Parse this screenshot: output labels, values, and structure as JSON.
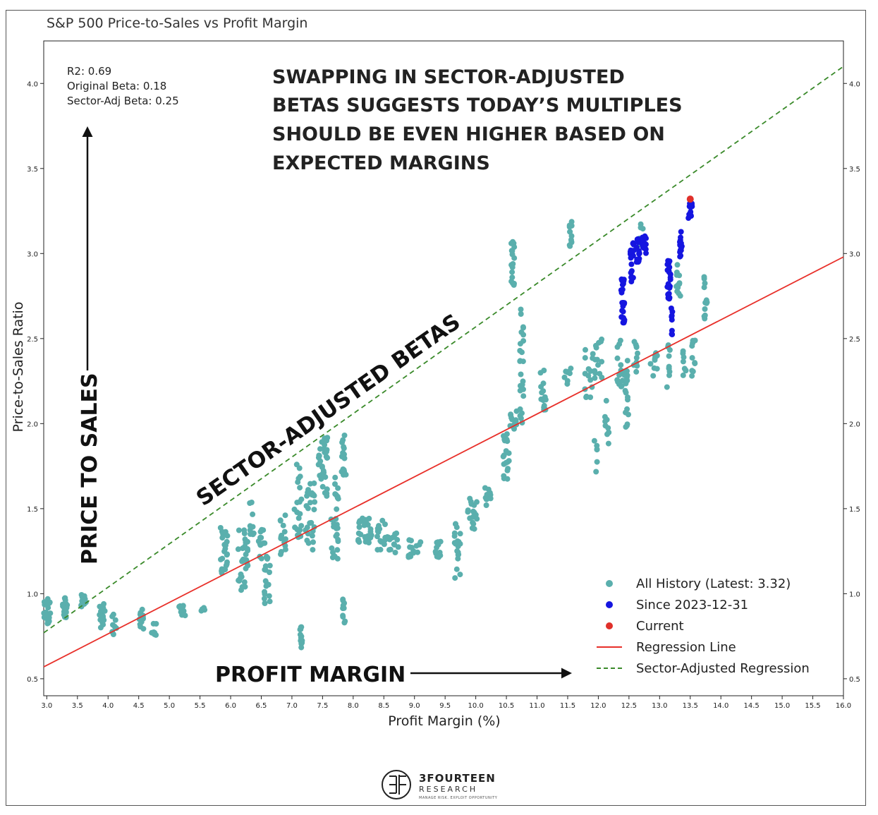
{
  "colors": {
    "history": "#5aafad",
    "since": "#1515e0",
    "current": "#e0302a",
    "regression": "#e8302a",
    "sector": "#3a8a2a",
    "annotation": "#111111"
  },
  "chart_data": {
    "type": "scatter",
    "title": "S&P 500 Price-to-Sales vs Profit Margin",
    "xlabel": "Profit Margin (%)",
    "ylabel": "Price-to-Sales Ratio",
    "xlim": [
      2.95,
      16.0
    ],
    "ylim": [
      0.4,
      4.25
    ],
    "xticks": [
      "3.0",
      "3.5",
      "4.0",
      "4.5",
      "5.0",
      "5.5",
      "6.0",
      "6.5",
      "7.0",
      "7.5",
      "8.0",
      "8.5",
      "9.0",
      "9.5",
      "10.0",
      "10.5",
      "11.0",
      "11.5",
      "12.0",
      "12.5",
      "13.0",
      "13.5",
      "14.0",
      "14.5",
      "15.0",
      "15.5",
      "16.0"
    ],
    "yticks": [
      "0.5",
      "1.0",
      "1.5",
      "2.0",
      "2.5",
      "3.0",
      "3.5",
      "4.0"
    ],
    "stats": {
      "r2": "R2: 0.69",
      "original_beta": "Original Beta: 0.18",
      "sector_beta": "Sector-Adj Beta: 0.25"
    },
    "headline": [
      "SWAPPING IN SECTOR-ADJUSTED",
      "BETAS SUGGESTS TODAY’S MULTIPLES",
      "SHOULD BE EVEN HIGHER BASED ON",
      "EXPECTED MARGINS"
    ],
    "annotations": {
      "y_arrow": "PRICE TO SALES",
      "x_arrow": "PROFIT MARGIN",
      "diagonal": "SECTOR-ADJUSTED BETAS"
    },
    "regression_line": {
      "x": [
        2.95,
        16.0
      ],
      "y": [
        0.57,
        2.98
      ]
    },
    "sector_line": {
      "x": [
        2.95,
        16.0
      ],
      "y": [
        0.77,
        4.1
      ]
    },
    "current": {
      "x": 13.5,
      "y": 3.32
    },
    "history_clusters": [
      [
        3.0,
        0.89,
        0.06,
        0.08,
        26
      ],
      [
        3.3,
        0.92,
        0.04,
        0.06,
        18
      ],
      [
        3.6,
        0.95,
        0.04,
        0.05,
        14
      ],
      [
        3.9,
        0.87,
        0.05,
        0.07,
        20
      ],
      [
        4.1,
        0.82,
        0.04,
        0.06,
        10
      ],
      [
        4.55,
        0.85,
        0.05,
        0.06,
        12
      ],
      [
        4.75,
        0.78,
        0.04,
        0.05,
        8
      ],
      [
        5.2,
        0.9,
        0.06,
        0.03,
        10
      ],
      [
        5.55,
        0.89,
        0.03,
        0.03,
        4
      ],
      [
        5.9,
        1.25,
        0.07,
        0.14,
        24
      ],
      [
        6.2,
        1.2,
        0.08,
        0.18,
        30
      ],
      [
        6.35,
        1.45,
        0.04,
        0.12,
        10
      ],
      [
        6.6,
        1.08,
        0.05,
        0.15,
        18
      ],
      [
        6.5,
        1.3,
        0.06,
        0.1,
        14
      ],
      [
        6.85,
        1.35,
        0.05,
        0.12,
        14
      ],
      [
        7.1,
        1.55,
        0.06,
        0.22,
        22
      ],
      [
        7.15,
        0.75,
        0.02,
        0.07,
        12
      ],
      [
        7.3,
        1.45,
        0.08,
        0.2,
        28
      ],
      [
        7.5,
        1.75,
        0.08,
        0.18,
        32
      ],
      [
        7.7,
        1.45,
        0.06,
        0.25,
        26
      ],
      [
        7.85,
        1.8,
        0.04,
        0.15,
        18
      ],
      [
        7.85,
        0.9,
        0.02,
        0.08,
        10
      ],
      [
        8.2,
        1.38,
        0.12,
        0.08,
        26
      ],
      [
        8.45,
        1.35,
        0.08,
        0.1,
        16
      ],
      [
        8.65,
        1.3,
        0.1,
        0.06,
        14
      ],
      [
        9.0,
        1.27,
        0.1,
        0.06,
        14
      ],
      [
        9.35,
        1.26,
        0.08,
        0.05,
        12
      ],
      [
        9.7,
        1.25,
        0.05,
        0.17,
        22
      ],
      [
        9.95,
        1.47,
        0.08,
        0.1,
        18
      ],
      [
        10.2,
        1.58,
        0.05,
        0.06,
        10
      ],
      [
        10.5,
        1.8,
        0.05,
        0.15,
        20
      ],
      [
        10.6,
        2.02,
        0.07,
        0.06,
        12
      ],
      [
        10.6,
        2.95,
        0.03,
        0.15,
        18
      ],
      [
        10.75,
        2.35,
        0.03,
        0.35,
        26
      ],
      [
        11.1,
        2.2,
        0.05,
        0.12,
        14
      ],
      [
        11.5,
        2.28,
        0.08,
        0.05,
        8
      ],
      [
        11.55,
        3.12,
        0.02,
        0.08,
        12
      ],
      [
        11.85,
        2.3,
        0.07,
        0.15,
        14
      ],
      [
        12.0,
        2.38,
        0.08,
        0.12,
        14
      ],
      [
        11.95,
        1.8,
        0.03,
        0.1,
        6
      ],
      [
        12.15,
        2.0,
        0.05,
        0.15,
        10
      ],
      [
        12.35,
        2.35,
        0.05,
        0.15,
        14
      ],
      [
        12.45,
        2.2,
        0.04,
        0.22,
        18
      ],
      [
        12.6,
        2.4,
        0.04,
        0.1,
        10
      ],
      [
        12.7,
        3.1,
        0.03,
        0.1,
        8
      ],
      [
        12.9,
        2.35,
        0.06,
        0.08,
        10
      ],
      [
        13.15,
        2.35,
        0.03,
        0.14,
        10
      ],
      [
        13.3,
        2.85,
        0.04,
        0.1,
        12
      ],
      [
        13.4,
        2.35,
        0.03,
        0.12,
        8
      ],
      [
        13.55,
        2.4,
        0.03,
        0.12,
        10
      ],
      [
        13.75,
        2.75,
        0.03,
        0.15,
        12
      ]
    ],
    "since_clusters": [
      [
        12.4,
        2.72,
        0.03,
        0.13,
        24
      ],
      [
        12.55,
        2.95,
        0.03,
        0.12,
        18
      ],
      [
        12.65,
        3.02,
        0.03,
        0.07,
        14
      ],
      [
        12.75,
        3.05,
        0.03,
        0.06,
        14
      ],
      [
        13.15,
        2.85,
        0.03,
        0.12,
        22
      ],
      [
        13.2,
        2.6,
        0.01,
        0.08,
        8
      ],
      [
        13.35,
        3.05,
        0.02,
        0.1,
        14
      ],
      [
        13.5,
        3.25,
        0.03,
        0.05,
        14
      ]
    ],
    "legend": [
      {
        "label": "All History (Latest: 3.32)",
        "marker": "dot",
        "color": "#5aafad"
      },
      {
        "label": "Since 2023-12-31",
        "marker": "dot",
        "color": "#1515e0"
      },
      {
        "label": "Current",
        "marker": "dot",
        "color": "#e0302a"
      },
      {
        "label": "Regression Line",
        "marker": "line",
        "color": "#e8302a"
      },
      {
        "label": "Sector-Adjusted Regression",
        "marker": "dashed",
        "color": "#3a8a2a"
      }
    ]
  },
  "logo": {
    "name": "3FOURTEEN",
    "sub": "RESEARCH",
    "tagline": "MANAGE RISK. EXPLOIT OPPORTUNITY"
  }
}
